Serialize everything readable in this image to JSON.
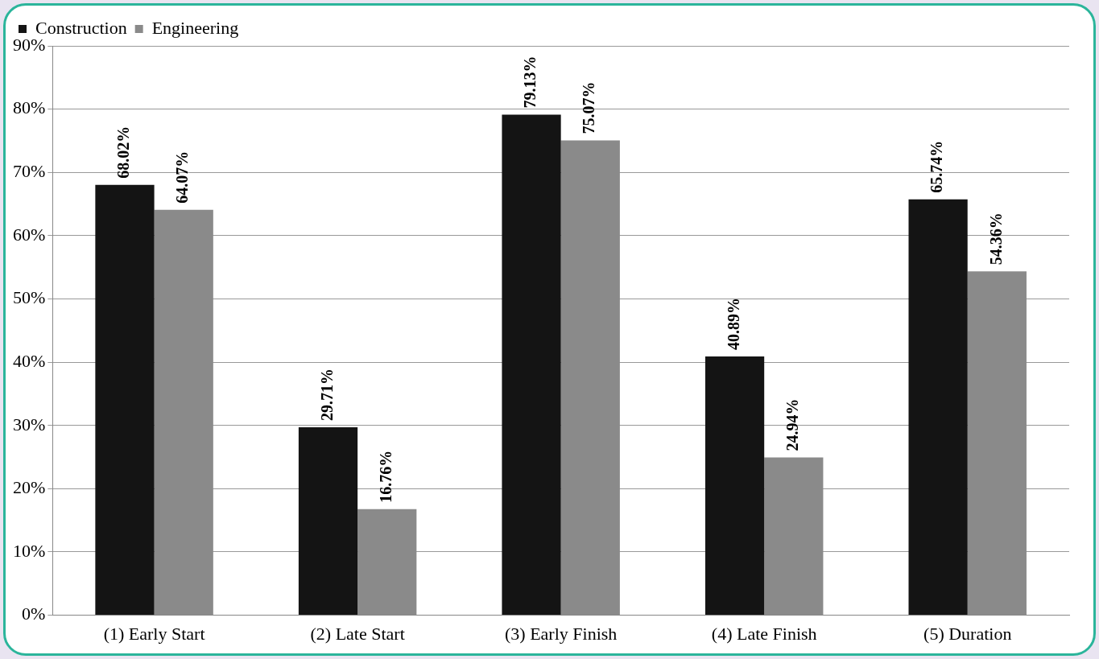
{
  "chart_data": {
    "type": "bar",
    "categories": [
      "(1) Early Start",
      "(2) Late Start",
      "(3) Early Finish",
      "(4) Late Finish",
      "(5) Duration"
    ],
    "series": [
      {
        "name": "Construction",
        "color": "#141414",
        "values": [
          68.02,
          29.71,
          79.13,
          40.89,
          65.74
        ],
        "value_labels": [
          "68.02%",
          "29.71%",
          "79.13%",
          "40.89%",
          "65.74%"
        ]
      },
      {
        "name": "Engineering",
        "color": "#8a8a8a",
        "values": [
          64.07,
          16.76,
          75.07,
          24.94,
          54.36
        ],
        "value_labels": [
          "64.07%",
          "16.76%",
          "75.07%",
          "24.94%",
          "54.36%"
        ]
      }
    ],
    "ylim": [
      0,
      90
    ],
    "yticks": [
      {
        "value": 0,
        "label": "0%"
      },
      {
        "value": 10,
        "label": "10%"
      },
      {
        "value": 20,
        "label": "20%"
      },
      {
        "value": 30,
        "label": "30%"
      },
      {
        "value": 40,
        "label": "40%"
      },
      {
        "value": 50,
        "label": "50%"
      },
      {
        "value": 60,
        "label": "60%"
      },
      {
        "value": 70,
        "label": "70%"
      },
      {
        "value": 80,
        "label": "80%"
      },
      {
        "value": 90,
        "label": "90%"
      }
    ],
    "grid": "y",
    "legend": "top left"
  }
}
